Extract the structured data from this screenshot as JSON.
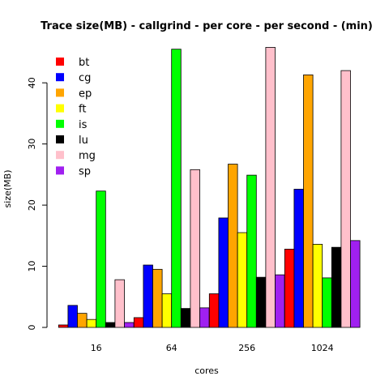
{
  "chart_data": {
    "type": "bar",
    "title": "Trace size(MB) - callgrind - per core - per second - (min)",
    "xlabel": "cores",
    "ylabel": "size(MB)",
    "categories": [
      "16",
      "64",
      "256",
      "1024"
    ],
    "ylim": [
      0,
      47
    ],
    "yticks": [
      0,
      10,
      20,
      30,
      40
    ],
    "grid": false,
    "legend": "top-left",
    "series": [
      {
        "name": "bt",
        "color": "#ff0000",
        "values": [
          0.4,
          1.6,
          5.5,
          12.8
        ]
      },
      {
        "name": "cg",
        "color": "#0000ff",
        "values": [
          3.6,
          10.2,
          17.9,
          22.6
        ]
      },
      {
        "name": "ep",
        "color": "#ffa500",
        "values": [
          2.3,
          9.5,
          26.7,
          41.3
        ]
      },
      {
        "name": "ft",
        "color": "#ffff00",
        "values": [
          1.3,
          5.5,
          15.5,
          13.6
        ]
      },
      {
        "name": "is",
        "color": "#00ff00",
        "values": [
          22.3,
          45.5,
          24.9,
          8.1
        ]
      },
      {
        "name": "lu",
        "color": "#000000",
        "values": [
          0.8,
          3.1,
          8.2,
          13.1
        ]
      },
      {
        "name": "mg",
        "color": "#ffc0cb",
        "values": [
          7.8,
          25.8,
          45.8,
          42.0
        ]
      },
      {
        "name": "sp",
        "color": "#a020f0",
        "values": [
          0.8,
          3.2,
          8.6,
          14.2
        ]
      }
    ]
  }
}
